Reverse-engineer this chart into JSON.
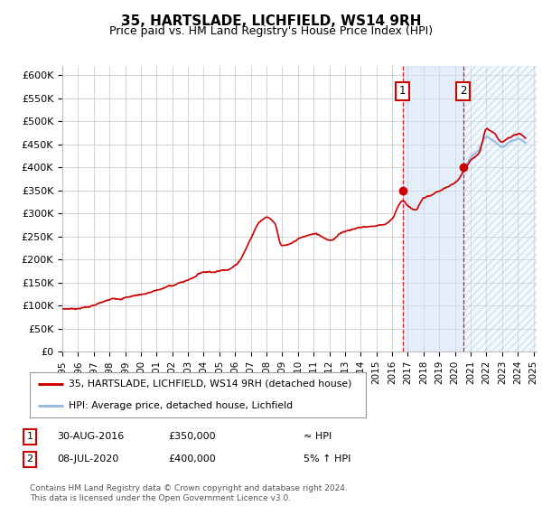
{
  "title": "35, HARTSLADE, LICHFIELD, WS14 9RH",
  "subtitle": "Price paid vs. HM Land Registry's House Price Index (HPI)",
  "ylim": [
    0,
    620000
  ],
  "yticks": [
    0,
    50000,
    100000,
    150000,
    200000,
    250000,
    300000,
    350000,
    400000,
    450000,
    500000,
    550000,
    600000
  ],
  "ytick_labels": [
    "£0",
    "£50K",
    "£100K",
    "£150K",
    "£200K",
    "£250K",
    "£300K",
    "£350K",
    "£400K",
    "£450K",
    "£500K",
    "£550K",
    "£600K"
  ],
  "xlim_start": 1995.0,
  "xlim_end": 2025.2,
  "transaction1_date": 2016.66,
  "transaction1_price": 350000,
  "transaction2_date": 2020.52,
  "transaction2_price": 400000,
  "line_color_red": "#cc0000",
  "line_color_blue": "#99bbdd",
  "grid_color": "#cccccc",
  "shade_color": "#ddeeff",
  "background_color": "#ffffff",
  "legend_line1": "35, HARTSLADE, LICHFIELD, WS14 9RH (detached house)",
  "legend_line2": "HPI: Average price, detached house, Lichfield",
  "table_row1": [
    "1",
    "30-AUG-2016",
    "£350,000",
    "≈ HPI"
  ],
  "table_row2": [
    "2",
    "08-JUL-2020",
    "£400,000",
    "5% ↑ HPI"
  ],
  "footer": "Contains HM Land Registry data © Crown copyright and database right 2024.\nThis data is licensed under the Open Government Licence v3.0."
}
